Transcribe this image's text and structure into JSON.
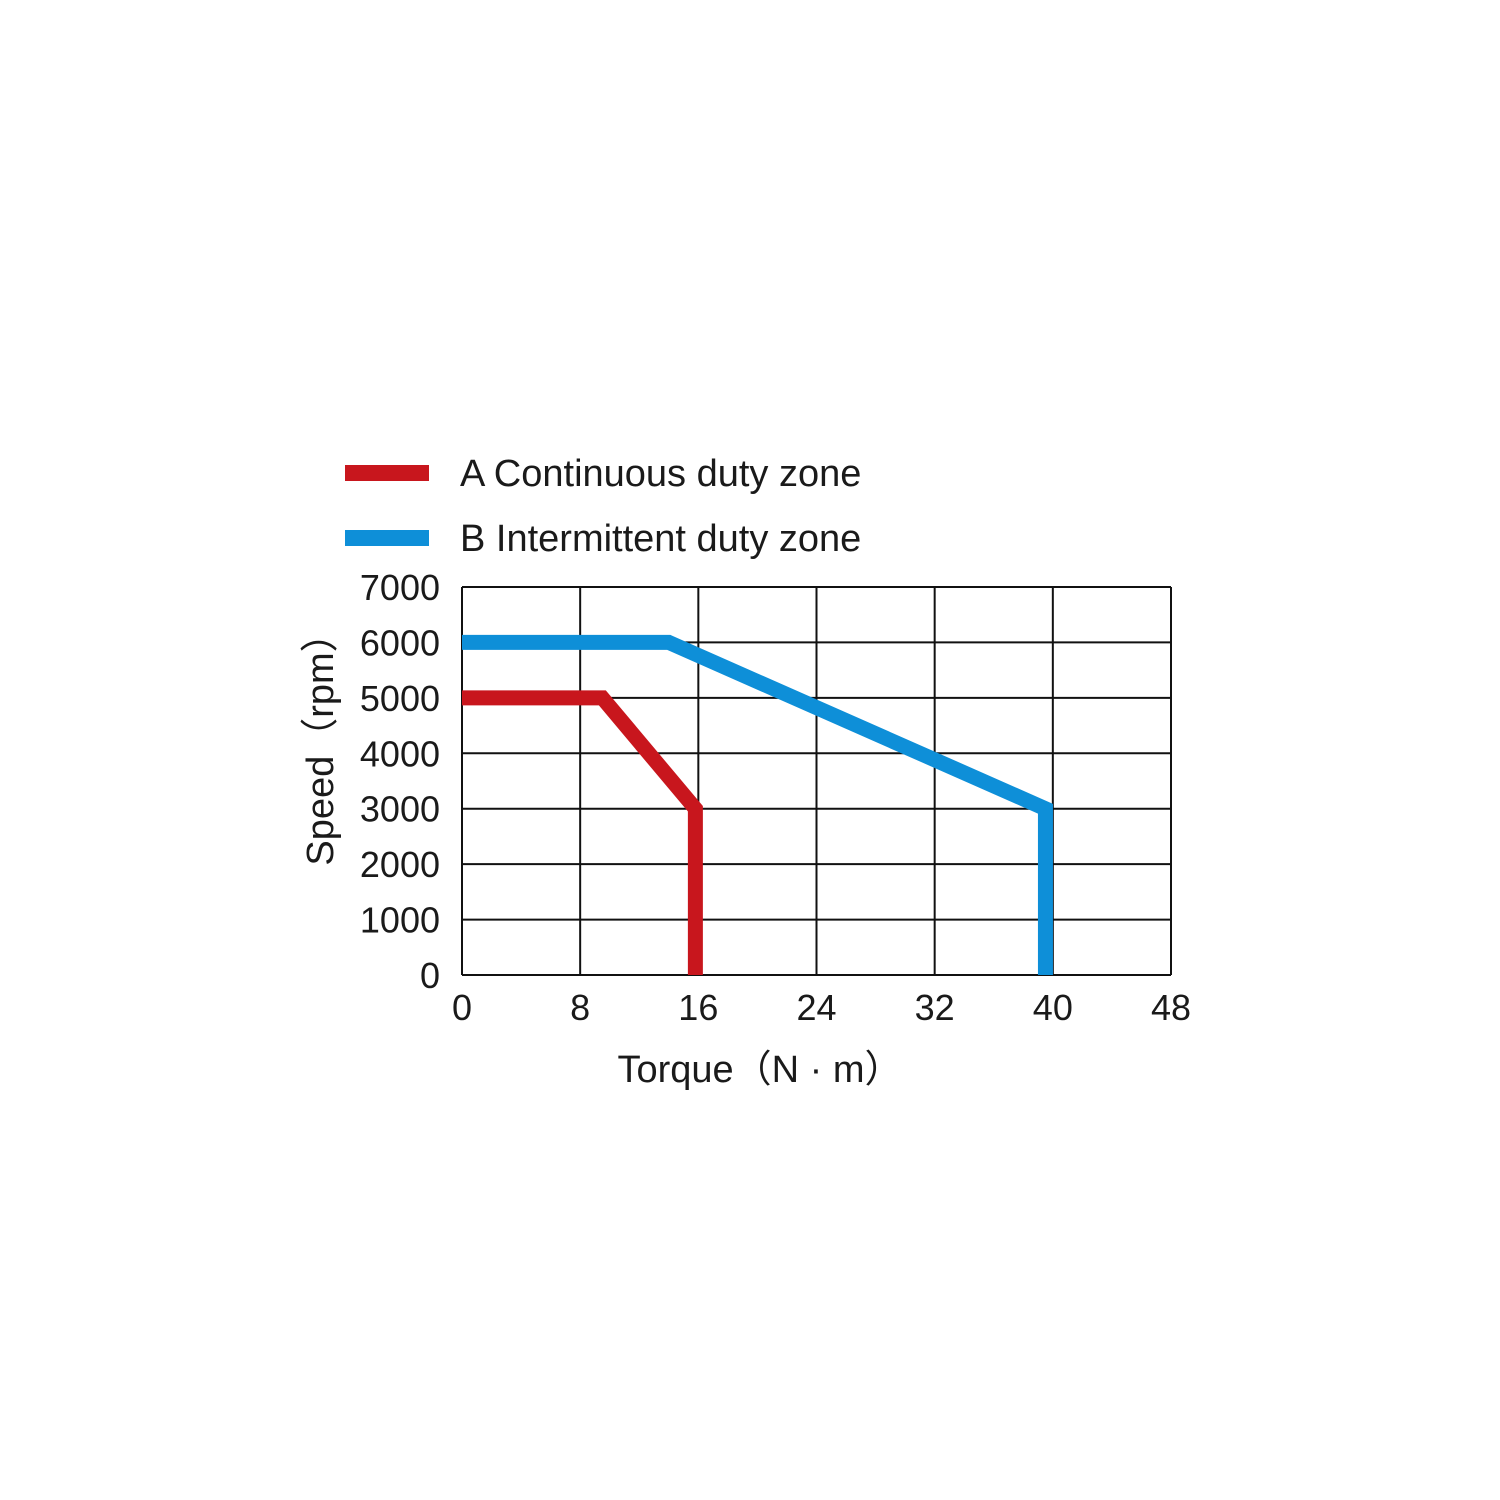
{
  "chart_data": {
    "type": "line",
    "xlabel": "Torque（N · m）",
    "ylabel": "Speed（rpm）",
    "xlim": [
      0,
      48
    ],
    "ylim": [
      0,
      7000
    ],
    "x_ticks": [
      "0",
      "8",
      "16",
      "24",
      "32",
      "40",
      "48"
    ],
    "y_ticks": [
      "0",
      "1000",
      "2000",
      "3000",
      "4000",
      "5000",
      "6000",
      "7000"
    ],
    "grid": true,
    "legend_position": "top-left",
    "series": [
      {
        "name": "A Continuous duty zone",
        "color": "#c8161d",
        "points": [
          [
            0,
            5000
          ],
          [
            9.5,
            5000
          ],
          [
            15.8,
            3000
          ],
          [
            15.8,
            0
          ]
        ]
      },
      {
        "name": "B Intermittent duty zone",
        "color": "#0e8fd8",
        "points": [
          [
            0,
            6000
          ],
          [
            14,
            6000
          ],
          [
            39.5,
            3000
          ],
          [
            39.5,
            0
          ]
        ]
      }
    ]
  }
}
